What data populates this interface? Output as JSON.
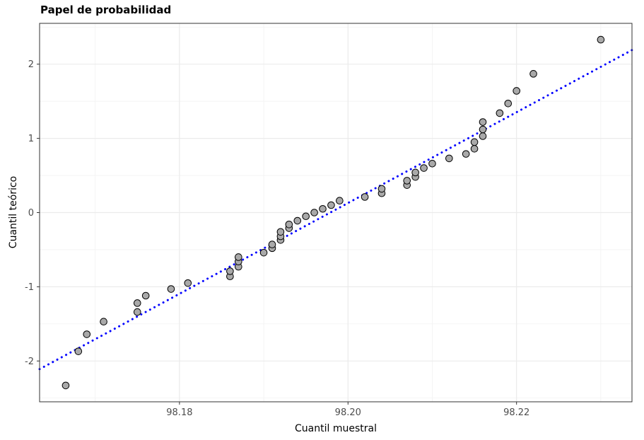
{
  "chart_data": {
    "type": "scatter",
    "title": "Papel de probabilidad",
    "xlabel": "Cuantil muestral",
    "ylabel": "Cuantil teórico",
    "xlim": [
      98.1634,
      98.2337
    ],
    "ylim": [
      -2.55,
      2.55
    ],
    "x_ticks": [
      98.18,
      98.2,
      98.22
    ],
    "x_tick_labels": [
      "98.18",
      "98.20",
      "98.22"
    ],
    "y_ticks": [
      -2,
      -1,
      0,
      1,
      2
    ],
    "y_tick_labels": [
      "-2",
      "-1",
      "0",
      "1",
      "2"
    ],
    "grid": true,
    "point_fill": "#a9a9a9",
    "point_stroke": "#000000",
    "line_color": "#0000ff",
    "reference_line": {
      "style": "dotted",
      "x": [
        98.1634,
        98.2337
      ],
      "y": [
        -2.11,
        2.19
      ]
    },
    "points": [
      {
        "x": 98.1665,
        "y": -2.33
      },
      {
        "x": 98.168,
        "y": -1.87
      },
      {
        "x": 98.169,
        "y": -1.64
      },
      {
        "x": 98.171,
        "y": -1.47
      },
      {
        "x": 98.175,
        "y": -1.34
      },
      {
        "x": 98.175,
        "y": -1.22
      },
      {
        "x": 98.176,
        "y": -1.12
      },
      {
        "x": 98.179,
        "y": -1.03
      },
      {
        "x": 98.181,
        "y": -0.95
      },
      {
        "x": 98.186,
        "y": -0.86
      },
      {
        "x": 98.186,
        "y": -0.79
      },
      {
        "x": 98.187,
        "y": -0.73
      },
      {
        "x": 98.187,
        "y": -0.66
      },
      {
        "x": 98.187,
        "y": -0.6
      },
      {
        "x": 98.19,
        "y": -0.54
      },
      {
        "x": 98.191,
        "y": -0.48
      },
      {
        "x": 98.191,
        "y": -0.43
      },
      {
        "x": 98.192,
        "y": -0.37
      },
      {
        "x": 98.192,
        "y": -0.32
      },
      {
        "x": 98.192,
        "y": -0.26
      },
      {
        "x": 98.193,
        "y": -0.21
      },
      {
        "x": 98.193,
        "y": -0.16
      },
      {
        "x": 98.194,
        "y": -0.11
      },
      {
        "x": 98.195,
        "y": -0.05
      },
      {
        "x": 98.196,
        "y": 0.0
      },
      {
        "x": 98.197,
        "y": 0.05
      },
      {
        "x": 98.198,
        "y": 0.1
      },
      {
        "x": 98.199,
        "y": 0.16
      },
      {
        "x": 98.202,
        "y": 0.21
      },
      {
        "x": 98.204,
        "y": 0.26
      },
      {
        "x": 98.204,
        "y": 0.32
      },
      {
        "x": 98.207,
        "y": 0.37
      },
      {
        "x": 98.207,
        "y": 0.43
      },
      {
        "x": 98.208,
        "y": 0.48
      },
      {
        "x": 98.208,
        "y": 0.54
      },
      {
        "x": 98.209,
        "y": 0.6
      },
      {
        "x": 98.21,
        "y": 0.66
      },
      {
        "x": 98.212,
        "y": 0.73
      },
      {
        "x": 98.214,
        "y": 0.79
      },
      {
        "x": 98.215,
        "y": 0.86
      },
      {
        "x": 98.215,
        "y": 0.95
      },
      {
        "x": 98.216,
        "y": 1.03
      },
      {
        "x": 98.216,
        "y": 1.12
      },
      {
        "x": 98.216,
        "y": 1.22
      },
      {
        "x": 98.218,
        "y": 1.34
      },
      {
        "x": 98.219,
        "y": 1.47
      },
      {
        "x": 98.22,
        "y": 1.64
      },
      {
        "x": 98.222,
        "y": 1.87
      },
      {
        "x": 98.23,
        "y": 2.33
      }
    ]
  }
}
